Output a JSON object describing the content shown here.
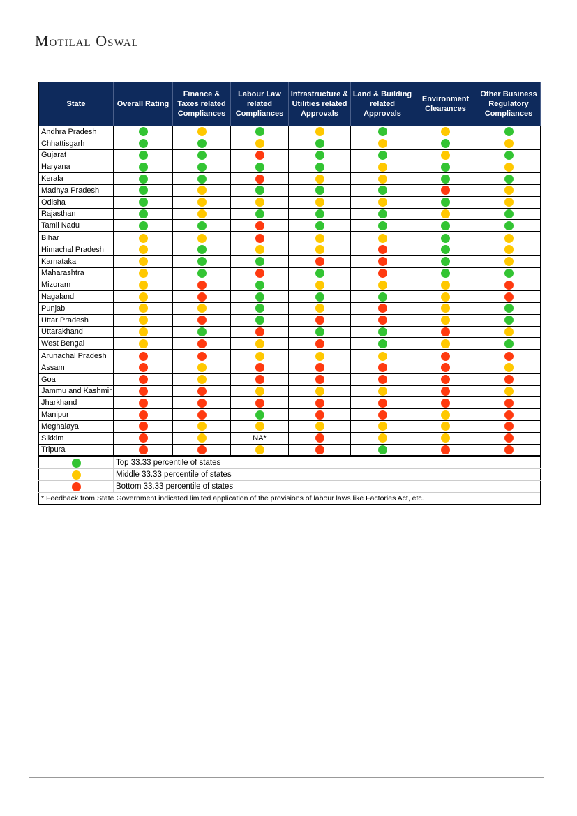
{
  "brand": "Motilal Oswal",
  "colors": {
    "G": "#33c433",
    "Y": "#ffc800",
    "R": "#ff3a10",
    "header_bg": "#0e2a5c"
  },
  "columns": [
    "State",
    "Overall Rating",
    "Finance & Taxes related Compliances",
    "Labour Law related Compliances",
    "Infrastructure & Utilities related Approvals",
    "Land & Building related Approvals",
    "Environment Clearances",
    "Other Business Regulatory Compliances"
  ],
  "groups": [
    [
      {
        "state": "Andhra Pradesh",
        "ratings": [
          "G",
          "Y",
          "G",
          "Y",
          "G",
          "Y",
          "G"
        ]
      },
      {
        "state": "Chhattisgarh",
        "ratings": [
          "G",
          "G",
          "Y",
          "G",
          "Y",
          "G",
          "Y"
        ]
      },
      {
        "state": "Gujarat",
        "ratings": [
          "G",
          "G",
          "R",
          "G",
          "G",
          "Y",
          "G"
        ]
      },
      {
        "state": "Haryana",
        "ratings": [
          "G",
          "G",
          "G",
          "G",
          "Y",
          "G",
          "Y"
        ]
      },
      {
        "state": "Kerala",
        "ratings": [
          "G",
          "G",
          "R",
          "Y",
          "Y",
          "G",
          "G"
        ]
      },
      {
        "state": "Madhya Pradesh",
        "ratings": [
          "G",
          "Y",
          "G",
          "G",
          "G",
          "R",
          "Y"
        ]
      },
      {
        "state": "Odisha",
        "ratings": [
          "G",
          "Y",
          "Y",
          "Y",
          "Y",
          "G",
          "Y"
        ]
      },
      {
        "state": "Rajasthan",
        "ratings": [
          "G",
          "Y",
          "G",
          "G",
          "G",
          "Y",
          "G"
        ]
      },
      {
        "state": "Tamil Nadu",
        "ratings": [
          "G",
          "G",
          "R",
          "G",
          "G",
          "G",
          "G"
        ]
      }
    ],
    [
      {
        "state": "Bihar",
        "ratings": [
          "Y",
          "Y",
          "R",
          "Y",
          "Y",
          "G",
          "Y"
        ]
      },
      {
        "state": "Himachal Pradesh",
        "ratings": [
          "Y",
          "G",
          "Y",
          "Y",
          "R",
          "G",
          "Y"
        ]
      },
      {
        "state": "Karnataka",
        "ratings": [
          "Y",
          "G",
          "G",
          "R",
          "R",
          "G",
          "Y"
        ]
      },
      {
        "state": "Maharashtra",
        "ratings": [
          "Y",
          "G",
          "R",
          "G",
          "R",
          "G",
          "G"
        ]
      },
      {
        "state": "Mizoram",
        "ratings": [
          "Y",
          "R",
          "G",
          "Y",
          "Y",
          "Y",
          "R"
        ]
      },
      {
        "state": "Nagaland",
        "ratings": [
          "Y",
          "R",
          "G",
          "G",
          "G",
          "Y",
          "R"
        ]
      },
      {
        "state": "Punjab",
        "ratings": [
          "Y",
          "Y",
          "G",
          "Y",
          "R",
          "Y",
          "G"
        ]
      },
      {
        "state": "Uttar Pradesh",
        "ratings": [
          "Y",
          "R",
          "G",
          "R",
          "R",
          "Y",
          "G"
        ]
      },
      {
        "state": "Uttarakhand",
        "ratings": [
          "Y",
          "G",
          "R",
          "G",
          "G",
          "R",
          "Y"
        ]
      },
      {
        "state": "West Bengal",
        "ratings": [
          "Y",
          "R",
          "Y",
          "R",
          "G",
          "Y",
          "G"
        ]
      }
    ],
    [
      {
        "state": "Arunachal Pradesh",
        "ratings": [
          "R",
          "R",
          "Y",
          "Y",
          "Y",
          "R",
          "R"
        ]
      },
      {
        "state": "Assam",
        "ratings": [
          "R",
          "Y",
          "R",
          "R",
          "R",
          "R",
          "Y"
        ]
      },
      {
        "state": "Goa",
        "ratings": [
          "R",
          "Y",
          "R",
          "R",
          "R",
          "R",
          "R"
        ]
      },
      {
        "state": "Jammu and Kashmir",
        "ratings": [
          "R",
          "R",
          "Y",
          "Y",
          "Y",
          "R",
          "Y"
        ]
      },
      {
        "state": "Jharkhand",
        "ratings": [
          "R",
          "R",
          "R",
          "R",
          "R",
          "R",
          "R"
        ]
      },
      {
        "state": "Manipur",
        "ratings": [
          "R",
          "R",
          "G",
          "R",
          "R",
          "Y",
          "R"
        ]
      },
      {
        "state": "Meghalaya",
        "ratings": [
          "R",
          "Y",
          "Y",
          "Y",
          "Y",
          "Y",
          "R"
        ]
      },
      {
        "state": "Sikkim",
        "ratings": [
          "R",
          "Y",
          "NA*",
          "R",
          "Y",
          "Y",
          "R"
        ]
      },
      {
        "state": "Tripura",
        "ratings": [
          "R",
          "R",
          "Y",
          "R",
          "G",
          "R",
          "R"
        ]
      }
    ]
  ],
  "legend": [
    {
      "code": "G",
      "label": "Top 33.33 percentile of states"
    },
    {
      "code": "Y",
      "label": "Middle 33.33 percentile of states"
    },
    {
      "code": "R",
      "label": "Bottom 33.33 percentile of states"
    }
  ],
  "footnote": "* Feedback from State Government indicated limited application of the provisions of labour laws like Factories Act, etc."
}
